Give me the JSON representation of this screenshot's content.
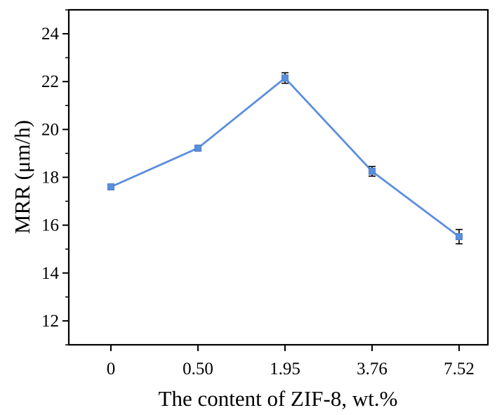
{
  "chart_data": {
    "type": "line",
    "title": "",
    "xlabel": "The content of ZIF-8, wt.%",
    "ylabel": "MRR (μm/h)",
    "categories": [
      "0",
      "0.50",
      "1.95",
      "3.76",
      "7.52"
    ],
    "series": [
      {
        "values": [
          17.6,
          19.22,
          22.15,
          18.25,
          15.52
        ],
        "errors": [
          0.08,
          0.12,
          0.22,
          0.2,
          0.3
        ],
        "color": "#5b8fdc",
        "marker": "square"
      }
    ],
    "ylim": [
      11,
      25
    ],
    "yticks": [
      12,
      14,
      16,
      18,
      20,
      22,
      24
    ],
    "grid": false,
    "legend": "none"
  }
}
